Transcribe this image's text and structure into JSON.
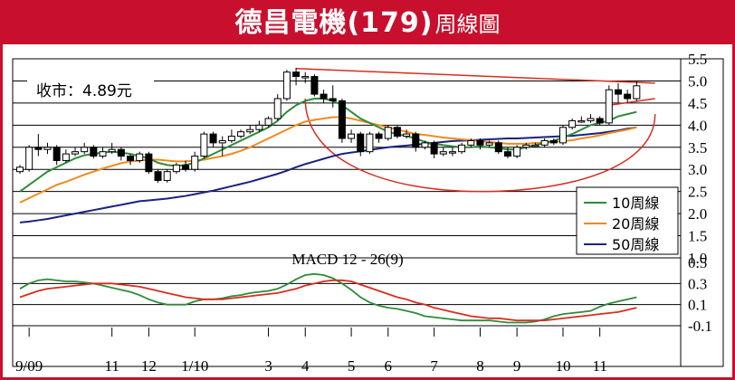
{
  "header": {
    "title": "德昌電機(179)",
    "subtitle": "周線圖"
  },
  "price_label": "收市：4.89元",
  "macd_label": "MACD 12 - 26(9)",
  "legend": [
    {
      "name": "10周線",
      "color": "#2e8b3a"
    },
    {
      "name": "20周線",
      "color": "#f08a1c"
    },
    {
      "name": "50周線",
      "color": "#1a237e"
    }
  ],
  "colors": {
    "accent": "#c8102e",
    "trend": "#d62e1f",
    "macd": "#2e8b3a",
    "signal": "#d62e1f"
  },
  "chart_data": [
    {
      "type": "candlestick",
      "title": "",
      "ylim": [
        1.0,
        5.5
      ],
      "yticks": [
        "5.5",
        "5.0",
        "4.5",
        "4.0",
        "3.5",
        "3.0",
        "2.5",
        "2.0",
        "1.5",
        "1.0"
      ],
      "ytick_values": [
        5.5,
        5.0,
        4.5,
        4.0,
        3.5,
        3.0,
        2.5,
        2.0,
        1.5,
        1.0
      ],
      "grid": true,
      "xlim": [
        0,
        71
      ],
      "xticks": [
        {
          "label": "9/09",
          "x": 1
        },
        {
          "label": "11",
          "x": 10
        },
        {
          "label": "12",
          "x": 14
        },
        {
          "label": "1/10",
          "x": 19
        },
        {
          "label": "3",
          "x": 27
        },
        {
          "label": "4",
          "x": 31
        },
        {
          "label": "5",
          "x": 36
        },
        {
          "label": "6",
          "x": 40
        },
        {
          "label": "7",
          "x": 45
        },
        {
          "label": "8",
          "x": 50
        },
        {
          "label": "9",
          "x": 54
        },
        {
          "label": "10",
          "x": 59
        },
        {
          "label": "11",
          "x": 63
        }
      ],
      "candles": [
        [
          2.95,
          3.05,
          2.9,
          3.1
        ],
        [
          3.0,
          3.5,
          2.95,
          3.55
        ],
        [
          3.5,
          3.45,
          3.3,
          3.8
        ],
        [
          3.45,
          3.5,
          3.35,
          3.6
        ],
        [
          3.5,
          3.2,
          3.1,
          3.55
        ],
        [
          3.2,
          3.35,
          3.15,
          3.45
        ],
        [
          3.35,
          3.4,
          3.3,
          3.5
        ],
        [
          3.4,
          3.5,
          3.35,
          3.6
        ],
        [
          3.5,
          3.3,
          3.25,
          3.55
        ],
        [
          3.3,
          3.4,
          3.25,
          3.5
        ],
        [
          3.4,
          3.45,
          3.35,
          3.6
        ],
        [
          3.45,
          3.3,
          3.2,
          3.5
        ],
        [
          3.3,
          3.2,
          3.1,
          3.35
        ],
        [
          3.2,
          3.35,
          3.15,
          3.4
        ],
        [
          3.35,
          2.95,
          2.9,
          3.4
        ],
        [
          2.95,
          2.75,
          2.7,
          3.0
        ],
        [
          2.75,
          2.95,
          2.7,
          3.0
        ],
        [
          2.95,
          3.1,
          2.9,
          3.15
        ],
        [
          3.1,
          3.0,
          2.95,
          3.2
        ],
        [
          3.0,
          3.3,
          2.95,
          3.4
        ],
        [
          3.3,
          3.8,
          3.25,
          3.85
        ],
        [
          3.8,
          3.6,
          3.5,
          3.85
        ],
        [
          3.6,
          3.65,
          3.3,
          3.75
        ],
        [
          3.65,
          3.75,
          3.6,
          3.9
        ],
        [
          3.75,
          3.85,
          3.7,
          3.9
        ],
        [
          3.85,
          3.9,
          3.8,
          4.0
        ],
        [
          3.9,
          4.0,
          3.85,
          4.1
        ],
        [
          4.0,
          4.15,
          3.95,
          4.2
        ],
        [
          4.15,
          4.6,
          4.1,
          4.7
        ],
        [
          4.6,
          5.2,
          4.55,
          5.25
        ],
        [
          5.2,
          5.1,
          4.9,
          5.3
        ],
        [
          5.1,
          5.1,
          4.95,
          5.2
        ],
        [
          5.1,
          4.7,
          4.65,
          5.15
        ],
        [
          4.7,
          4.6,
          4.5,
          4.8
        ],
        [
          4.6,
          4.55,
          4.4,
          4.9
        ],
        [
          4.55,
          3.7,
          3.6,
          4.6
        ],
        [
          3.7,
          3.8,
          3.6,
          3.9
        ],
        [
          3.8,
          3.4,
          3.3,
          3.85
        ],
        [
          3.4,
          3.8,
          3.35,
          3.85
        ],
        [
          3.8,
          3.7,
          3.6,
          3.85
        ],
        [
          3.7,
          3.95,
          3.65,
          4.0
        ],
        [
          3.95,
          3.75,
          3.7,
          4.0
        ],
        [
          3.75,
          3.8,
          3.7,
          3.9
        ],
        [
          3.8,
          3.5,
          3.4,
          3.85
        ],
        [
          3.5,
          3.6,
          3.45,
          3.65
        ],
        [
          3.6,
          3.35,
          3.25,
          3.65
        ],
        [
          3.35,
          3.4,
          3.3,
          3.5
        ],
        [
          3.4,
          3.4,
          3.3,
          3.5
        ],
        [
          3.4,
          3.55,
          3.35,
          3.6
        ],
        [
          3.55,
          3.65,
          3.5,
          3.7
        ],
        [
          3.65,
          3.55,
          3.45,
          3.7
        ],
        [
          3.55,
          3.6,
          3.5,
          3.65
        ],
        [
          3.6,
          3.4,
          3.35,
          3.65
        ],
        [
          3.4,
          3.3,
          3.25,
          3.5
        ],
        [
          3.3,
          3.5,
          3.25,
          3.55
        ],
        [
          3.5,
          3.55,
          3.45,
          3.6
        ],
        [
          3.55,
          3.55,
          3.5,
          3.6
        ],
        [
          3.55,
          3.65,
          3.5,
          3.7
        ],
        [
          3.65,
          3.6,
          3.55,
          3.7
        ],
        [
          3.6,
          3.95,
          3.55,
          4.0
        ],
        [
          3.95,
          4.1,
          3.9,
          4.15
        ],
        [
          4.1,
          4.1,
          4.05,
          4.2
        ],
        [
          4.1,
          4.15,
          4.05,
          4.25
        ],
        [
          4.15,
          4.05,
          4.0,
          4.2
        ],
        [
          4.05,
          4.8,
          4.0,
          4.9
        ],
        [
          4.8,
          4.7,
          4.5,
          4.95
        ],
        [
          4.7,
          4.6,
          4.5,
          4.8
        ],
        [
          4.6,
          4.89,
          4.55,
          5.0
        ]
      ],
      "ma10": [
        2.5,
        2.65,
        2.8,
        2.95,
        3.05,
        3.15,
        3.25,
        3.32,
        3.35,
        3.38,
        3.4,
        3.38,
        3.35,
        3.3,
        3.25,
        3.15,
        3.1,
        3.08,
        3.1,
        3.15,
        3.25,
        3.35,
        3.45,
        3.55,
        3.65,
        3.75,
        3.85,
        3.95,
        4.1,
        4.3,
        4.45,
        4.55,
        4.6,
        4.6,
        4.55,
        4.45,
        4.3,
        4.15,
        4.05,
        3.95,
        3.85,
        3.8,
        3.75,
        3.7,
        3.62,
        3.58,
        3.55,
        3.52,
        3.5,
        3.5,
        3.52,
        3.5,
        3.48,
        3.45,
        3.45,
        3.5,
        3.55,
        3.6,
        3.65,
        3.72,
        3.8,
        3.9,
        4.0,
        4.05,
        4.1,
        4.2,
        4.25,
        4.3
      ],
      "ma20": [
        2.25,
        2.35,
        2.45,
        2.55,
        2.65,
        2.72,
        2.8,
        2.88,
        2.95,
        3.02,
        3.08,
        3.14,
        3.18,
        3.2,
        3.22,
        3.22,
        3.2,
        3.18,
        3.18,
        3.2,
        3.22,
        3.26,
        3.3,
        3.35,
        3.42,
        3.5,
        3.6,
        3.7,
        3.8,
        3.9,
        4.0,
        4.08,
        4.12,
        4.15,
        4.18,
        4.18,
        4.15,
        4.1,
        4.05,
        4.0,
        3.95,
        3.9,
        3.85,
        3.8,
        3.78,
        3.75,
        3.72,
        3.7,
        3.68,
        3.66,
        3.64,
        3.62,
        3.6,
        3.58,
        3.58,
        3.58,
        3.6,
        3.6,
        3.62,
        3.64,
        3.66,
        3.7,
        3.73,
        3.77,
        3.82,
        3.86,
        3.9,
        3.95
      ],
      "ma50": [
        1.8,
        1.82,
        1.85,
        1.88,
        1.92,
        1.96,
        2.0,
        2.04,
        2.08,
        2.12,
        2.16,
        2.2,
        2.24,
        2.28,
        2.3,
        2.32,
        2.34,
        2.37,
        2.4,
        2.44,
        2.48,
        2.52,
        2.57,
        2.62,
        2.67,
        2.72,
        2.78,
        2.84,
        2.9,
        2.97,
        3.05,
        3.12,
        3.18,
        3.24,
        3.3,
        3.35,
        3.38,
        3.41,
        3.44,
        3.47,
        3.5,
        3.52,
        3.54,
        3.56,
        3.58,
        3.6,
        3.62,
        3.64,
        3.65,
        3.66,
        3.67,
        3.68,
        3.69,
        3.7,
        3.7,
        3.71,
        3.72,
        3.73,
        3.74,
        3.75,
        3.76,
        3.78,
        3.8,
        3.82,
        3.85,
        3.88,
        3.92,
        3.95
      ],
      "trendlines": [
        {
          "from": [
            30,
            5.28
          ],
          "to": [
            69,
            4.95
          ]
        },
        {
          "from": [
            64,
            4.45
          ],
          "to": [
            69,
            4.6
          ]
        }
      ],
      "rounding_bottom": {
        "from": [
          31,
          4.6
        ],
        "bottom": [
          50,
          2.5
        ],
        "to": [
          69,
          4.25
        ]
      }
    },
    {
      "type": "line",
      "title": "MACD 12 - 26(9)",
      "ylim": [
        -0.1,
        0.5
      ],
      "yticks": [
        "0.5",
        "0.3",
        "0.1",
        "-0.1"
      ],
      "ytick_values": [
        0.5,
        0.3,
        0.1,
        -0.1
      ],
      "grid": true,
      "series": [
        {
          "name": "",
          "values": [
            0.25,
            0.3,
            0.33,
            0.34,
            0.33,
            0.32,
            0.32,
            0.31,
            0.3,
            0.28,
            0.26,
            0.24,
            0.22,
            0.19,
            0.15,
            0.12,
            0.1,
            0.1,
            0.1,
            0.13,
            0.15,
            0.15,
            0.16,
            0.18,
            0.19,
            0.21,
            0.22,
            0.23,
            0.25,
            0.29,
            0.34,
            0.38,
            0.39,
            0.38,
            0.35,
            0.3,
            0.24,
            0.17,
            0.12,
            0.09,
            0.07,
            0.06,
            0.04,
            0.02,
            -0.01,
            -0.02,
            -0.03,
            -0.04,
            -0.05,
            -0.05,
            -0.05,
            -0.05,
            -0.06,
            -0.07,
            -0.07,
            -0.07,
            -0.06,
            -0.04,
            -0.01,
            0.01,
            0.02,
            0.03,
            0.04,
            0.08,
            0.11,
            0.13,
            0.15,
            0.17
          ]
        },
        {
          "name": "",
          "values": [
            0.17,
            0.2,
            0.23,
            0.25,
            0.26,
            0.27,
            0.28,
            0.29,
            0.3,
            0.3,
            0.3,
            0.29,
            0.28,
            0.27,
            0.25,
            0.23,
            0.21,
            0.19,
            0.17,
            0.16,
            0.15,
            0.15,
            0.15,
            0.16,
            0.17,
            0.18,
            0.19,
            0.2,
            0.21,
            0.23,
            0.25,
            0.28,
            0.3,
            0.32,
            0.33,
            0.33,
            0.32,
            0.29,
            0.26,
            0.23,
            0.2,
            0.17,
            0.15,
            0.12,
            0.1,
            0.07,
            0.05,
            0.03,
            0.01,
            -0.01,
            -0.02,
            -0.03,
            -0.03,
            -0.04,
            -0.05,
            -0.05,
            -0.05,
            -0.05,
            -0.04,
            -0.03,
            -0.02,
            -0.01,
            0.0,
            0.01,
            0.02,
            0.03,
            0.05,
            0.07
          ]
        }
      ]
    }
  ]
}
